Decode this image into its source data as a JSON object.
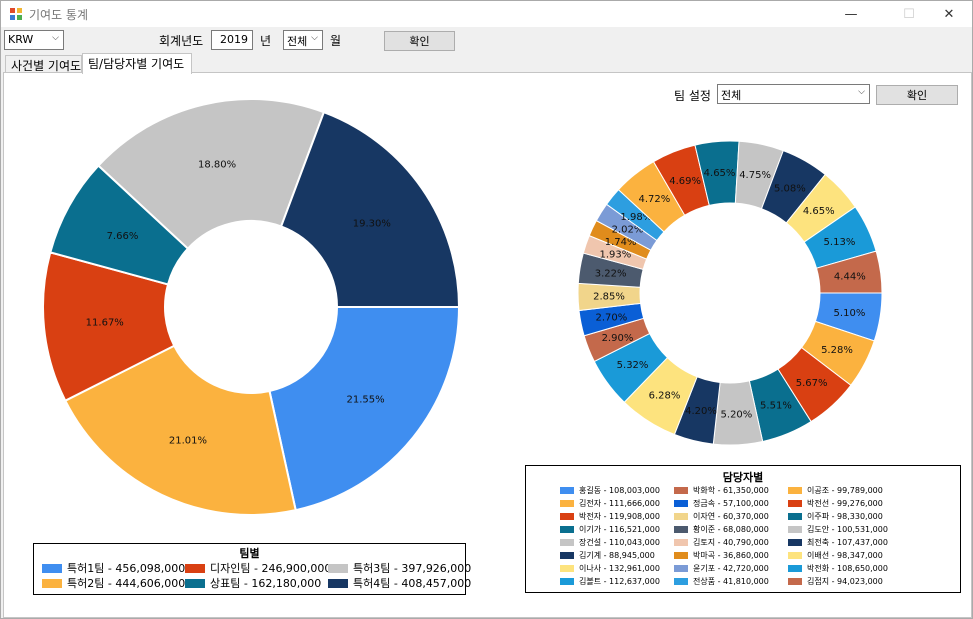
{
  "window": {
    "title": "기여도 통계",
    "minimize": "—",
    "maximize": "☐",
    "close": "✕"
  },
  "toolbar": {
    "currency": "KRW",
    "fiscal_label": "회계년도",
    "year": "2019",
    "year_suffix": "년",
    "month": "전체",
    "month_suffix": "월",
    "confirm": "확인"
  },
  "tabs": [
    {
      "label": "사건별 기여도"
    },
    {
      "label": "팀/담당자별 기여도"
    }
  ],
  "team_setting": {
    "label": "팀 설정",
    "value": "전체",
    "confirm": "확인"
  },
  "colors": {
    "blue": "#3f8ef0",
    "orange": "#fbb23f",
    "red": "#d94012",
    "teal": "#0a6f8f",
    "gray": "#c5c5c5",
    "navy": "#173763",
    "brown": "#c4694b",
    "yellow": "#fde37e",
    "slate": "#4c5a6e",
    "peach": "#f0c6ae",
    "amber": "#e08c1c",
    "periwinkle": "#7b9bd6",
    "sky": "#2d9ee0",
    "royal": "#0a5fd6",
    "sand": "#f1d58b",
    "cyan": "#1a9ad8"
  },
  "chart_data": [
    {
      "type": "pie",
      "title": "팀별",
      "slices": [
        {
          "name": "특허1팀",
          "value": 456098000,
          "label": "21.55%",
          "color": "blue",
          "legend": "특허1팀 - 456,098,000"
        },
        {
          "name": "특허2팀",
          "value": 444606000,
          "label": "21.01%",
          "color": "orange",
          "legend": "특허2팀 - 444,606,000"
        },
        {
          "name": "디자인팀",
          "value": 246900000,
          "label": "11.67%",
          "color": "red",
          "legend": "디자인팀 - 246,900,000"
        },
        {
          "name": "상표팀",
          "value": 162180000,
          "label": "7.66%",
          "color": "teal",
          "legend": "상표팀 - 162,180,000"
        },
        {
          "name": "특허3팀",
          "value": 397926000,
          "label": "18.80%",
          "color": "gray",
          "legend": "특허3팀 - 397,926,000"
        },
        {
          "name": "특허4팀",
          "value": 408457000,
          "label": "19.30%",
          "color": "navy",
          "legend": "특허4팀 - 408,457,000"
        }
      ]
    },
    {
      "type": "pie",
      "title": "담당자별",
      "slices": [
        {
          "value": 108003000,
          "label": "5.10%",
          "color": "blue",
          "legend": "홍길동 - 108,003,000"
        },
        {
          "value": 111666000,
          "label": "5.28%",
          "color": "orange",
          "legend": "김전자 - 111,666,000"
        },
        {
          "value": 119908000,
          "label": "5.67%",
          "color": "red",
          "legend": "박전자 - 119,908,000"
        },
        {
          "value": 116521000,
          "label": "5.51%",
          "color": "teal",
          "legend": "이기가 - 116,521,000"
        },
        {
          "value": 110043000,
          "label": "5.20%",
          "color": "gray",
          "legend": "장건설 - 110,043,000"
        },
        {
          "value": 88945000,
          "label": "4.20%",
          "color": "navy",
          "legend": "김기계 - 88,945,000"
        },
        {
          "value": 132961000,
          "label": "6.28%",
          "color": "yellow",
          "legend": "이나사 - 132,961,000"
        },
        {
          "value": 112637000,
          "label": "5.32%",
          "color": "cyan",
          "legend": "김볼트 - 112,637,000"
        },
        {
          "value": 61350000,
          "label": "2.90%",
          "color": "brown",
          "legend": "박화학 - 61,350,000"
        },
        {
          "value": 57100000,
          "label": "2.70%",
          "color": "royal",
          "legend": "정금속 - 57,100,000"
        },
        {
          "value": 60370000,
          "label": "2.85%",
          "color": "sand",
          "legend": "이자연 - 60,370,000"
        },
        {
          "value": 68080000,
          "label": "3.22%",
          "color": "slate",
          "legend": "황이준 - 68,080,000"
        },
        {
          "value": 40790000,
          "label": "1.93%",
          "color": "peach",
          "legend": "김토지 - 40,790,000"
        },
        {
          "value": 36860000,
          "label": "1.74%",
          "color": "amber",
          "legend": "박마곡 - 36,860,000"
        },
        {
          "value": 42720000,
          "label": "2.02%",
          "color": "periwinkle",
          "legend": "윤기포 - 42,720,000"
        },
        {
          "value": 41810000,
          "label": "1.98%",
          "color": "sky",
          "legend": "전상품 - 41,810,000"
        },
        {
          "value": 99789000,
          "label": "4.72%",
          "color": "orange",
          "legend": "이공조 - 99,789,000"
        },
        {
          "value": 99276000,
          "label": "4.69%",
          "color": "red",
          "legend": "박전선 - 99,276,000"
        },
        {
          "value": 98330000,
          "label": "4.65%",
          "color": "teal",
          "legend": "이주파 - 98,330,000"
        },
        {
          "value": 100531000,
          "label": "4.75%",
          "color": "gray",
          "legend": "김도안 - 100,531,000"
        },
        {
          "value": 107437000,
          "label": "5.08%",
          "color": "navy",
          "legend": "최전축 - 107,437,000"
        },
        {
          "value": 98347000,
          "label": "4.65%",
          "color": "yellow",
          "legend": "이배선 - 98,347,000"
        },
        {
          "value": 108650000,
          "label": "5.13%",
          "color": "cyan",
          "legend": "박전화 - 108,650,000"
        },
        {
          "value": 94023000,
          "label": "4.44%",
          "color": "brown",
          "legend": "김접지 - 94,023,000"
        }
      ]
    }
  ]
}
